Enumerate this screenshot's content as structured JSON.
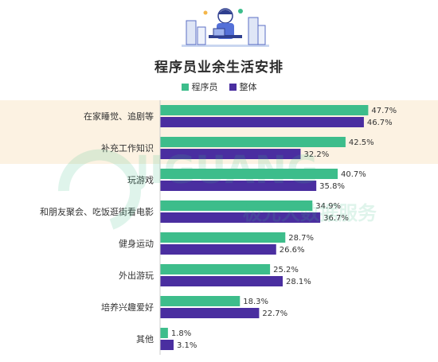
{
  "chart_data": {
    "type": "bar",
    "orientation": "horizontal",
    "title": "程序员业余生活安排",
    "categories": [
      "在家睡觉、追剧等",
      "补充工作知识",
      "玩游戏",
      "和朋友聚会、吃饭逛街看电影",
      "健身运动",
      "外出游玩",
      "培养兴趣爱好",
      "其他"
    ],
    "series": [
      {
        "name": "程序员",
        "values": [
          47.7,
          42.5,
          40.7,
          34.9,
          28.7,
          25.2,
          18.3,
          1.8
        ],
        "labels": [
          "47.7%",
          "42.5%",
          "40.7%",
          "34.9%",
          "28.7%",
          "25.2%",
          "18.3%",
          "1.8%"
        ],
        "color": "#3dbd8b"
      },
      {
        "name": "整体",
        "values": [
          46.7,
          32.2,
          35.8,
          36.7,
          26.6,
          28.1,
          22.7,
          3.1
        ],
        "labels": [
          "46.7%",
          "32.2%",
          "35.8%",
          "36.7%",
          "26.6%",
          "28.1%",
          "22.7%",
          "3.1%"
        ],
        "color": "#4a2ea0"
      }
    ],
    "highlight_band": {
      "color": "#fcf2e2",
      "categories": [
        "在家睡觉、追剧等",
        "补充工作知识"
      ]
    },
    "grid": false,
    "legend_position": "top-center"
  },
  "watermark": {
    "text_latin": "JIGUANG",
    "text_cn": "极光大数据服务",
    "color": "#3dbd8b"
  },
  "icons": {
    "hero": "developer-at-desk-illustration"
  }
}
